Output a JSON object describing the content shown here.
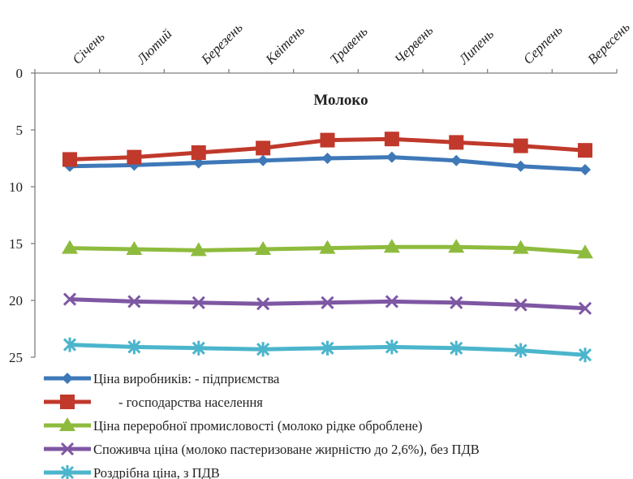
{
  "chart_data": {
    "type": "line",
    "title": "Молоко",
    "y_reversed": true,
    "ylim": [
      0,
      25
    ],
    "yticks": [
      "0",
      "5",
      "10",
      "15",
      "20",
      "25"
    ],
    "categories": [
      "Січень",
      "Лютий",
      "Березень",
      "Квітень",
      "Травень",
      "Червень",
      "Липень",
      "Серпень",
      "Вересень"
    ],
    "series": [
      {
        "name": "Ціна виробників:  - підприємства",
        "color": "#3e78b8",
        "marker": "diamond",
        "values": [
          8.2,
          8.1,
          7.9,
          7.7,
          7.5,
          7.4,
          7.7,
          8.2,
          8.5
        ]
      },
      {
        "name": "- господарства населення",
        "color": "#c0392b",
        "marker": "square",
        "values": [
          7.6,
          7.4,
          7.0,
          6.6,
          5.9,
          5.8,
          6.1,
          6.4,
          6.8
        ]
      },
      {
        "name": "Ціна переробної промисловості (молоко рідке оброблене)",
        "color": "#8ebb3d",
        "marker": "triangle",
        "values": [
          15.4,
          15.5,
          15.6,
          15.5,
          15.4,
          15.3,
          15.3,
          15.4,
          15.8
        ]
      },
      {
        "name": "Споживча ціна  (молоко пастеризоване жирністю до 2,6%), без ПДВ",
        "color": "#7e57a3",
        "marker": "x",
        "values": [
          19.9,
          20.1,
          20.2,
          20.3,
          20.2,
          20.1,
          20.2,
          20.4,
          20.7
        ]
      },
      {
        "name": "Роздрібна ціна, з ПДВ",
        "color": "#4bb5cc",
        "marker": "star",
        "values": [
          23.9,
          24.1,
          24.2,
          24.3,
          24.2,
          24.1,
          24.2,
          24.4,
          24.8
        ]
      }
    ],
    "legend_position": "bottom",
    "grid": false
  }
}
